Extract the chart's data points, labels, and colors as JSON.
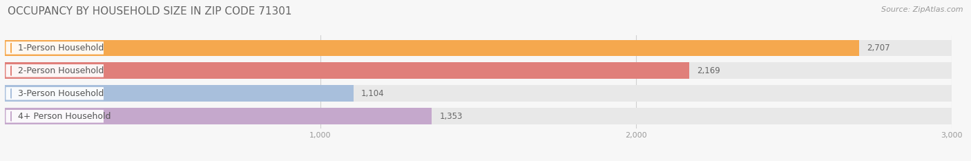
{
  "title": "OCCUPANCY BY HOUSEHOLD SIZE IN ZIP CODE 71301",
  "source": "Source: ZipAtlas.com",
  "categories": [
    "1-Person Household",
    "2-Person Household",
    "3-Person Household",
    "4+ Person Household"
  ],
  "values": [
    2707,
    2169,
    1104,
    1353
  ],
  "bar_colors": [
    "#f5a84e",
    "#e07f7a",
    "#a8bfdc",
    "#c5a8cc"
  ],
  "xlim": [
    0,
    3000
  ],
  "xticks": [
    1000,
    2000,
    3000
  ],
  "xtick_labels": [
    "1,000",
    "2,000",
    "3,000"
  ],
  "background_color": "#f7f7f7",
  "bar_bg_color": "#e8e8e8",
  "title_fontsize": 11,
  "source_fontsize": 8,
  "label_fontsize": 9,
  "value_fontsize": 8.5
}
